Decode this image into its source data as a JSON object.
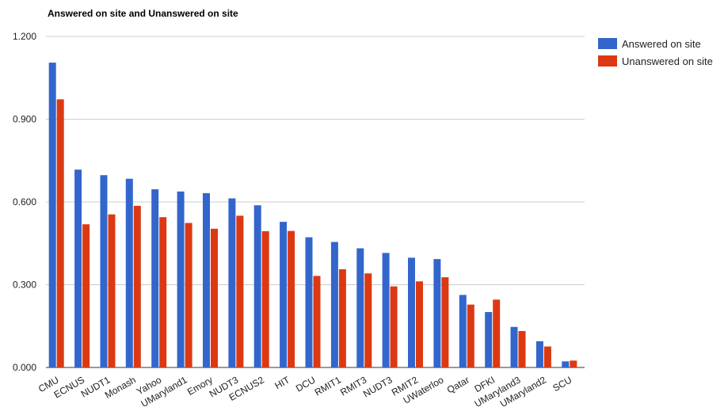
{
  "chart_data": {
    "type": "bar",
    "title": "Answered on site and Unanswered on site",
    "xlabel": "",
    "ylabel": "",
    "ylim": [
      0,
      1.2
    ],
    "yticks": [
      "0.000",
      "0.300",
      "0.600",
      "0.900",
      "1.200"
    ],
    "ytick_values": [
      0,
      0.3,
      0.6,
      0.9,
      1.2
    ],
    "grid": true,
    "legend_position": "right",
    "categories": [
      "CMU",
      "ECNUS",
      "NUDT1",
      "Monash",
      "Yahoo",
      "UMaryland1",
      "Emory",
      "NUDT3",
      "ECNUS2",
      "HIT",
      "DCU",
      "RMIT1",
      "RMIT3",
      "NUDT3",
      "RMIT2",
      "UWaterloo",
      "Qatar",
      "DFKI",
      "UMaryland3",
      "UMaryland2",
      "SCU"
    ],
    "series": [
      {
        "name": "Answered on site",
        "color": "#3366cc",
        "values": [
          1.105,
          0.717,
          0.697,
          0.684,
          0.646,
          0.638,
          0.632,
          0.613,
          0.588,
          0.528,
          0.472,
          0.455,
          0.432,
          0.415,
          0.398,
          0.393,
          0.263,
          0.201,
          0.147,
          0.095,
          0.022
        ]
      },
      {
        "name": "Unanswered on site",
        "color": "#dc3912",
        "values": [
          0.972,
          0.519,
          0.555,
          0.586,
          0.545,
          0.524,
          0.503,
          0.55,
          0.494,
          0.495,
          0.332,
          0.356,
          0.341,
          0.294,
          0.312,
          0.327,
          0.228,
          0.246,
          0.132,
          0.076,
          0.025
        ]
      }
    ]
  }
}
